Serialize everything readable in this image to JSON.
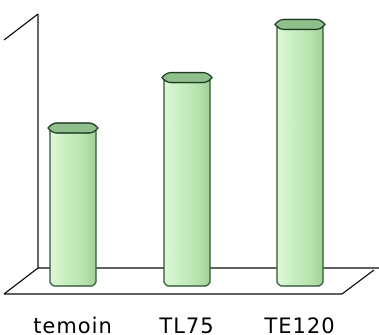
{
  "chart_data": {
    "type": "bar",
    "title": "",
    "xlabel": "",
    "ylabel": "",
    "categories": [
      "temoin",
      "TL75",
      "TE120"
    ],
    "values": [
      55,
      73,
      92
    ],
    "ylim": [
      0,
      100
    ],
    "grid": false,
    "legend": "none",
    "bar_color": "#c8f0c0",
    "bar_edge_color": "#3a6040",
    "top_cap_color": "#8fbf8a"
  }
}
